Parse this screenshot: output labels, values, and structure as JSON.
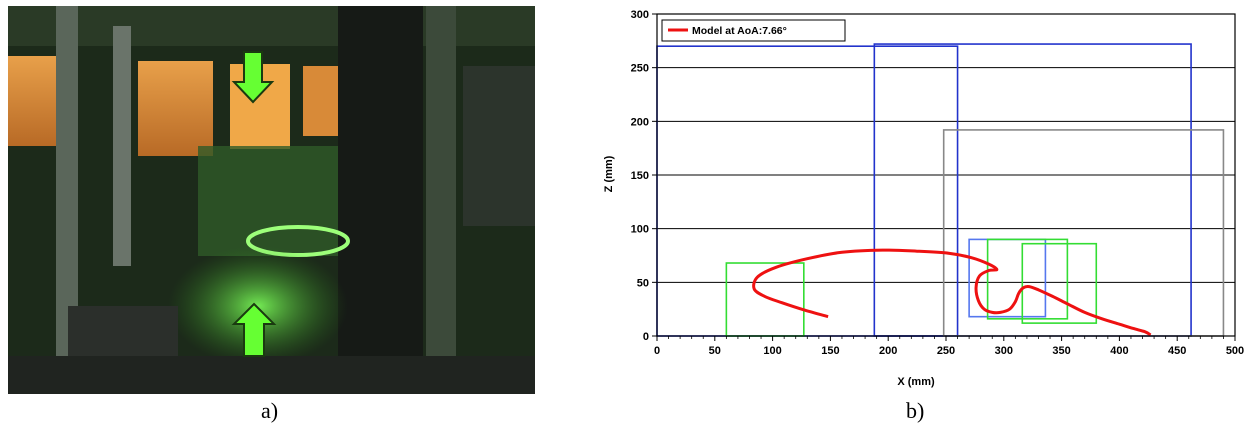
{
  "panels": {
    "a_label": "a)",
    "b_label": "b)"
  },
  "photo": {
    "description_icon": "laser-lit-model-photo",
    "arrow_color": "#66ff33"
  },
  "chart_data": {
    "type": "line",
    "xlabel": "X (mm)",
    "ylabel": "Z (mm)",
    "xlim": [
      0,
      500
    ],
    "ylim": [
      0,
      300
    ],
    "xticks": [
      0,
      50,
      100,
      150,
      200,
      250,
      300,
      350,
      400,
      450,
      500
    ],
    "yticks": [
      0,
      50,
      100,
      150,
      200,
      250,
      300
    ],
    "grid": "horizontal",
    "legend": {
      "position": "top-left",
      "entries": [
        "Model at AoA:7.66°"
      ]
    },
    "series": [
      {
        "name": "Model at AoA:7.66°",
        "color": "#ee1111",
        "points": [
          [
            148,
            18
          ],
          [
            128,
            24
          ],
          [
            108,
            31
          ],
          [
            93,
            37
          ],
          [
            84,
            44
          ],
          [
            87,
            55
          ],
          [
            103,
            64
          ],
          [
            130,
            72
          ],
          [
            160,
            78
          ],
          [
            195,
            80
          ],
          [
            225,
            79
          ],
          [
            253,
            77
          ],
          [
            272,
            73
          ],
          [
            287,
            67
          ],
          [
            294,
            62
          ],
          [
            287,
            61
          ],
          [
            279,
            56
          ],
          [
            276,
            45
          ],
          [
            278,
            33
          ],
          [
            283,
            25
          ],
          [
            290,
            22
          ],
          [
            297,
            22
          ],
          [
            305,
            25
          ],
          [
            310,
            32
          ],
          [
            313,
            40
          ],
          [
            317,
            45
          ],
          [
            322,
            46
          ],
          [
            330,
            43
          ],
          [
            342,
            37
          ],
          [
            355,
            30
          ],
          [
            370,
            22
          ],
          [
            385,
            16
          ],
          [
            400,
            11
          ],
          [
            412,
            7
          ],
          [
            422,
            4
          ],
          [
            427,
            1
          ]
        ]
      }
    ],
    "rectangles": [
      {
        "color": "#2233cc",
        "x": [
          0,
          260
        ],
        "z": [
          0,
          270
        ]
      },
      {
        "color": "#2233cc",
        "x": [
          188,
          462
        ],
        "z": [
          0,
          272
        ]
      },
      {
        "color": "#888888",
        "x": [
          248,
          490
        ],
        "z": [
          0,
          192
        ]
      },
      {
        "color": "#33dd33",
        "x": [
          60,
          127
        ],
        "z": [
          0,
          68
        ]
      },
      {
        "color": "#5577ee",
        "x": [
          270,
          336
        ],
        "z": [
          18,
          90
        ]
      },
      {
        "color": "#33dd33",
        "x": [
          286,
          355
        ],
        "z": [
          16,
          90
        ]
      },
      {
        "color": "#33dd33",
        "x": [
          316,
          380
        ],
        "z": [
          12,
          86
        ]
      }
    ]
  }
}
